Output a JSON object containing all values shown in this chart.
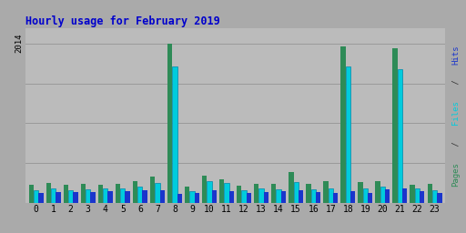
{
  "title": "Hourly usage for February 2019",
  "hours": [
    0,
    1,
    2,
    3,
    4,
    5,
    6,
    7,
    8,
    9,
    10,
    11,
    12,
    13,
    14,
    15,
    16,
    17,
    18,
    19,
    20,
    21,
    22,
    23
  ],
  "pages": [
    230,
    250,
    225,
    240,
    230,
    235,
    275,
    325,
    2000,
    200,
    345,
    295,
    215,
    240,
    235,
    385,
    235,
    270,
    1970,
    265,
    270,
    1950,
    225,
    235
  ],
  "files": [
    155,
    175,
    155,
    168,
    185,
    180,
    200,
    245,
    1720,
    145,
    270,
    245,
    155,
    175,
    170,
    265,
    165,
    185,
    1720,
    175,
    205,
    1680,
    175,
    155
  ],
  "hits": [
    120,
    138,
    130,
    135,
    148,
    145,
    155,
    155,
    115,
    122,
    152,
    150,
    122,
    135,
    148,
    152,
    130,
    128,
    148,
    128,
    165,
    178,
    142,
    128
  ],
  "color_pages": "#2e8b57",
  "color_files": "#00ccdd",
  "color_hits": "#1a35cc",
  "bg_color": "#aaaaaa",
  "plot_bg": "#bbbbbb",
  "title_color": "#0000cc",
  "ylim": [
    0,
    2200
  ],
  "ytick_val": 2014,
  "grid_levels": [
    500,
    1000,
    1500,
    2000
  ],
  "grid_color": "#999999",
  "right_label_parts": [
    "Pages",
    " / ",
    "Files",
    " / ",
    "Hits"
  ],
  "right_label_colors": [
    "#2e8b57",
    "#333333",
    "#00ccdd",
    "#333333",
    "#1a35cc"
  ]
}
